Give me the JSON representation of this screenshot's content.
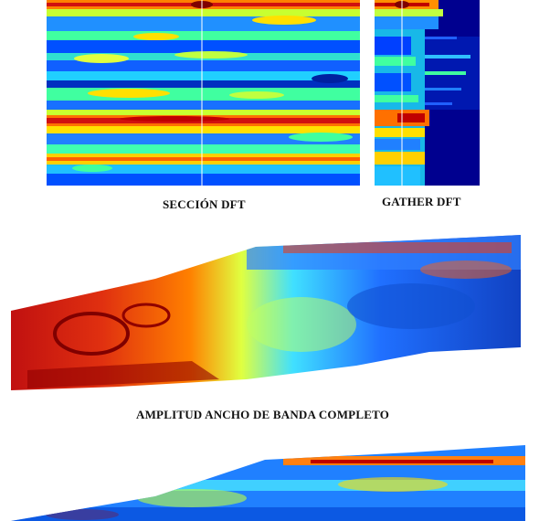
{
  "captions": {
    "section_dft": "SECCIÓN DFT",
    "gather_dft": "GATHER DFT",
    "amplitude_full_band": "AMPLITUD  ANCHO DE BANDA COMPLETO"
  },
  "colormap": [
    "#00008f",
    "#0040ff",
    "#00c0ff",
    "#40ffbf",
    "#c0ff40",
    "#ffe000",
    "#ff6000",
    "#c00000",
    "#800000"
  ]
}
